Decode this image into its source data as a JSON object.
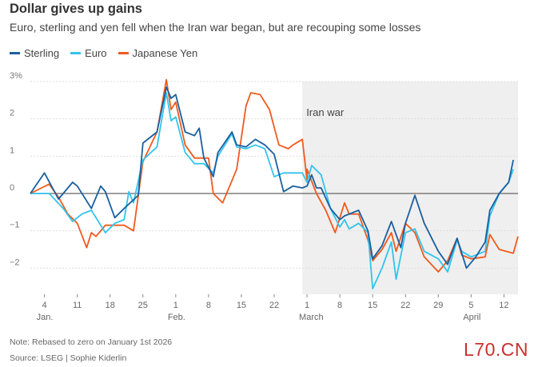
{
  "header": {
    "title": "Dollar gives up gains",
    "subtitle": "Euro, sterling and yen fell when the Iran war began, but are recouping some losses"
  },
  "footer": {
    "note": "Note: Rebased to zero on January 1st 2026",
    "source": "Source: LSEG | Sophie Kiderlin"
  },
  "watermark": "L70.CN",
  "colors": {
    "sterling": "#1a5fa0",
    "euro": "#32c4ee",
    "yen": "#f05a1e",
    "shade": "#efefef"
  },
  "chart_data": {
    "type": "line",
    "title": "Dollar gives up gains",
    "ylim": [
      -2.7,
      3
    ],
    "yticks": [
      {
        "value": 3,
        "label": "3%"
      },
      {
        "value": 2,
        "label": "2"
      },
      {
        "value": 1,
        "label": "1"
      },
      {
        "value": 0,
        "label": "0"
      },
      {
        "value": -1,
        "label": "−1"
      },
      {
        "value": -2,
        "label": "−2"
      }
    ],
    "xlim": [
      "2026-01-01",
      "2026-04-15"
    ],
    "xticks": [
      {
        "date": "2026-01-04",
        "label": "4"
      },
      {
        "date": "2026-01-11",
        "label": "11"
      },
      {
        "date": "2026-01-18",
        "label": "18"
      },
      {
        "date": "2026-01-25",
        "label": "25"
      },
      {
        "date": "2026-02-01",
        "label": "1"
      },
      {
        "date": "2026-02-08",
        "label": "8"
      },
      {
        "date": "2026-02-15",
        "label": "15"
      },
      {
        "date": "2026-02-22",
        "label": "22"
      },
      {
        "date": "2026-03-01",
        "label": "1"
      },
      {
        "date": "2026-03-08",
        "label": "8"
      },
      {
        "date": "2026-03-15",
        "label": "15"
      },
      {
        "date": "2026-03-22",
        "label": "22"
      },
      {
        "date": "2026-03-29",
        "label": "29"
      },
      {
        "date": "2026-04-05",
        "label": "5"
      },
      {
        "date": "2026-04-12",
        "label": "12"
      }
    ],
    "month_labels": [
      {
        "date": "2026-01-04",
        "label": "Jan."
      },
      {
        "date": "2026-02-01",
        "label": "Feb."
      },
      {
        "date": "2026-03-01",
        "label": "March"
      },
      {
        "date": "2026-04-05",
        "label": "April"
      }
    ],
    "annotation": {
      "start": "2026-02-28",
      "end": "2026-04-15",
      "label": "Iran war"
    },
    "series": [
      {
        "name": "Sterling",
        "color": "#1a5fa0",
        "points": [
          [
            "2026-01-01",
            0
          ],
          [
            "2026-01-04",
            0.55
          ],
          [
            "2026-01-07",
            -0.15
          ],
          [
            "2026-01-10",
            0.3
          ],
          [
            "2026-01-11",
            0.2
          ],
          [
            "2026-01-14",
            -0.4
          ],
          [
            "2026-01-16",
            0.2
          ],
          [
            "2026-01-17",
            0.05
          ],
          [
            "2026-01-19",
            -0.65
          ],
          [
            "2026-01-21",
            -0.4
          ],
          [
            "2026-01-24",
            -0.05
          ],
          [
            "2026-01-25",
            1.35
          ],
          [
            "2026-01-28",
            1.65
          ],
          [
            "2026-01-30",
            2.85
          ],
          [
            "2026-01-31",
            2.55
          ],
          [
            "2026-02-01",
            2.65
          ],
          [
            "2026-02-03",
            1.65
          ],
          [
            "2026-02-05",
            1.55
          ],
          [
            "2026-02-06",
            1.75
          ],
          [
            "2026-02-07",
            0.95
          ],
          [
            "2026-02-09",
            0.45
          ],
          [
            "2026-02-10",
            1.1
          ],
          [
            "2026-02-13",
            1.65
          ],
          [
            "2026-02-14",
            1.3
          ],
          [
            "2026-02-16",
            1.25
          ],
          [
            "2026-02-18",
            1.45
          ],
          [
            "2026-02-20",
            1.3
          ],
          [
            "2026-02-22",
            1.05
          ],
          [
            "2026-02-24",
            0.05
          ],
          [
            "2026-02-26",
            0.2
          ],
          [
            "2026-02-28",
            0.15
          ],
          [
            "2026-03-01",
            0.2
          ],
          [
            "2026-03-02",
            0.5
          ],
          [
            "2026-03-03",
            0.15
          ],
          [
            "2026-03-04",
            0.15
          ],
          [
            "2026-03-06",
            -0.4
          ],
          [
            "2026-03-08",
            -0.7
          ],
          [
            "2026-03-09",
            -0.6
          ],
          [
            "2026-03-11",
            -0.5
          ],
          [
            "2026-03-12",
            -0.45
          ],
          [
            "2026-03-14",
            -1.0
          ],
          [
            "2026-03-15",
            -1.75
          ],
          [
            "2026-03-17",
            -1.4
          ],
          [
            "2026-03-19",
            -0.75
          ],
          [
            "2026-03-21",
            -1.45
          ],
          [
            "2026-03-22",
            -0.8
          ],
          [
            "2026-03-24",
            -0.05
          ],
          [
            "2026-03-26",
            -0.8
          ],
          [
            "2026-03-29",
            -1.55
          ],
          [
            "2026-03-31",
            -1.9
          ],
          [
            "2026-04-02",
            -1.2
          ],
          [
            "2026-04-03",
            -1.6
          ],
          [
            "2026-04-04",
            -2.0
          ],
          [
            "2026-04-06",
            -1.7
          ],
          [
            "2026-04-08",
            -1.3
          ],
          [
            "2026-04-09",
            -0.45
          ],
          [
            "2026-04-11",
            0.0
          ],
          [
            "2026-04-13",
            0.3
          ],
          [
            "2026-04-14",
            0.9
          ]
        ]
      },
      {
        "name": "Euro",
        "color": "#32c4ee",
        "points": [
          [
            "2026-01-01",
            0
          ],
          [
            "2026-01-05",
            0.0
          ],
          [
            "2026-01-08",
            -0.4
          ],
          [
            "2026-01-10",
            -0.75
          ],
          [
            "2026-01-12",
            -0.55
          ],
          [
            "2026-01-14",
            -0.45
          ],
          [
            "2026-01-16",
            -0.85
          ],
          [
            "2026-01-17",
            -1.05
          ],
          [
            "2026-01-19",
            -0.8
          ],
          [
            "2026-01-21",
            -0.7
          ],
          [
            "2026-01-22",
            0.05
          ],
          [
            "2026-01-23",
            -0.25
          ],
          [
            "2026-01-25",
            0.9
          ],
          [
            "2026-01-28",
            1.25
          ],
          [
            "2026-01-30",
            2.7
          ],
          [
            "2026-01-31",
            1.95
          ],
          [
            "2026-02-01",
            2.05
          ],
          [
            "2026-02-03",
            1.1
          ],
          [
            "2026-02-05",
            0.8
          ],
          [
            "2026-02-07",
            0.8
          ],
          [
            "2026-02-09",
            0.55
          ],
          [
            "2026-02-10",
            1.0
          ],
          [
            "2026-02-13",
            1.6
          ],
          [
            "2026-02-14",
            1.25
          ],
          [
            "2026-02-16",
            1.2
          ],
          [
            "2026-02-18",
            1.3
          ],
          [
            "2026-02-20",
            1.2
          ],
          [
            "2026-02-22",
            0.45
          ],
          [
            "2026-02-24",
            0.55
          ],
          [
            "2026-02-26",
            0.55
          ],
          [
            "2026-02-28",
            0.55
          ],
          [
            "2026-03-01",
            0.3
          ],
          [
            "2026-03-02",
            0.75
          ],
          [
            "2026-03-04",
            0.5
          ],
          [
            "2026-03-06",
            -0.4
          ],
          [
            "2026-03-08",
            -0.9
          ],
          [
            "2026-03-09",
            -0.7
          ],
          [
            "2026-03-10",
            -0.95
          ],
          [
            "2026-03-12",
            -0.8
          ],
          [
            "2026-03-14",
            -1.05
          ],
          [
            "2026-03-15",
            -2.55
          ],
          [
            "2026-03-17",
            -2.0
          ],
          [
            "2026-03-19",
            -1.3
          ],
          [
            "2026-03-20",
            -2.3
          ],
          [
            "2026-03-22",
            -1.05
          ],
          [
            "2026-03-24",
            -0.95
          ],
          [
            "2026-03-26",
            -1.55
          ],
          [
            "2026-03-29",
            -1.75
          ],
          [
            "2026-03-31",
            -2.1
          ],
          [
            "2026-04-02",
            -1.25
          ],
          [
            "2026-04-03",
            -1.55
          ],
          [
            "2026-04-05",
            -1.7
          ],
          [
            "2026-04-08",
            -1.55
          ],
          [
            "2026-04-09",
            -0.6
          ],
          [
            "2026-04-11",
            0.0
          ],
          [
            "2026-04-13",
            0.3
          ],
          [
            "2026-04-14",
            0.65
          ]
        ]
      },
      {
        "name": "Japanese Yen",
        "color": "#f05a1e",
        "points": [
          [
            "2026-01-01",
            0
          ],
          [
            "2026-01-05",
            0.25
          ],
          [
            "2026-01-07",
            -0.1
          ],
          [
            "2026-01-09",
            -0.55
          ],
          [
            "2026-01-11",
            -0.8
          ],
          [
            "2026-01-13",
            -1.45
          ],
          [
            "2026-01-14",
            -1.05
          ],
          [
            "2026-01-15",
            -1.15
          ],
          [
            "2026-01-17",
            -0.85
          ],
          [
            "2026-01-19",
            -0.85
          ],
          [
            "2026-01-21",
            -0.85
          ],
          [
            "2026-01-23",
            -1.0
          ],
          [
            "2026-01-25",
            0.85
          ],
          [
            "2026-01-28",
            1.65
          ],
          [
            "2026-01-30",
            3.05
          ],
          [
            "2026-01-31",
            2.25
          ],
          [
            "2026-02-01",
            2.45
          ],
          [
            "2026-02-03",
            1.3
          ],
          [
            "2026-02-05",
            0.95
          ],
          [
            "2026-02-08",
            0.95
          ],
          [
            "2026-02-09",
            0.0
          ],
          [
            "2026-02-11",
            -0.25
          ],
          [
            "2026-02-14",
            0.65
          ],
          [
            "2026-02-16",
            2.35
          ],
          [
            "2026-02-17",
            2.7
          ],
          [
            "2026-02-19",
            2.65
          ],
          [
            "2026-02-21",
            2.25
          ],
          [
            "2026-02-23",
            1.3
          ],
          [
            "2026-02-25",
            1.2
          ],
          [
            "2026-02-26",
            1.3
          ],
          [
            "2026-02-28",
            1.45
          ],
          [
            "2026-02-29",
            0.35
          ],
          [
            "2026-03-01",
            0.65
          ],
          [
            "2026-03-03",
            0.0
          ],
          [
            "2026-03-05",
            -0.45
          ],
          [
            "2026-03-07",
            -1.05
          ],
          [
            "2026-03-09",
            -0.25
          ],
          [
            "2026-03-10",
            -0.55
          ],
          [
            "2026-03-12",
            -0.55
          ],
          [
            "2026-03-14",
            -1.25
          ],
          [
            "2026-03-15",
            -1.8
          ],
          [
            "2026-03-17",
            -1.5
          ],
          [
            "2026-03-19",
            -1.05
          ],
          [
            "2026-03-20",
            -1.55
          ],
          [
            "2026-03-22",
            -0.8
          ],
          [
            "2026-03-24",
            -1.05
          ],
          [
            "2026-03-26",
            -1.7
          ],
          [
            "2026-03-29",
            -2.1
          ],
          [
            "2026-03-31",
            -1.8
          ],
          [
            "2026-04-02",
            -1.2
          ],
          [
            "2026-04-03",
            -1.65
          ],
          [
            "2026-04-05",
            -1.75
          ],
          [
            "2026-04-08",
            -1.7
          ],
          [
            "2026-04-09",
            -1.1
          ],
          [
            "2026-04-11",
            -1.5
          ],
          [
            "2026-04-14",
            -1.6
          ],
          [
            "2026-04-15",
            -1.15
          ]
        ]
      }
    ]
  }
}
